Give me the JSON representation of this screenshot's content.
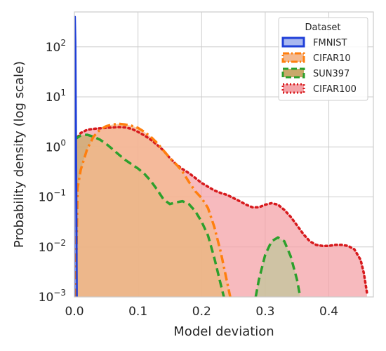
{
  "chart_data": {
    "type": "area",
    "xlabel": "Model deviation",
    "ylabel": "Probability density (log scale)",
    "xlim": [
      0.0,
      0.47
    ],
    "ylim": [
      0.001,
      500
    ],
    "yscale": "log",
    "grid": true,
    "x_ticks": [
      0.0,
      0.1,
      0.2,
      0.3,
      0.4
    ],
    "x_tick_labels": [
      "0.0",
      "0.1",
      "0.2",
      "0.3",
      "0.4"
    ],
    "y_ticks": [
      0.001,
      0.01,
      0.1,
      1,
      10,
      100
    ],
    "y_tick_labels": [
      {
        "base": "10",
        "exp": "−3"
      },
      {
        "base": "10",
        "exp": "−2"
      },
      {
        "base": "10",
        "exp": "−1"
      },
      {
        "base": "10",
        "exp": "0"
      },
      {
        "base": "10",
        "exp": "1"
      },
      {
        "base": "10",
        "exp": "2"
      }
    ],
    "legend": {
      "title": "Dataset",
      "placement": "top-right"
    },
    "series": [
      {
        "name": "CIFAR100",
        "color": "#d7191c",
        "fill": "#f4a3a8",
        "dash": "dotted",
        "points": [
          [
            0.0,
            1.3
          ],
          [
            0.01,
            1.9
          ],
          [
            0.02,
            2.2
          ],
          [
            0.03,
            2.3
          ],
          [
            0.04,
            2.35
          ],
          [
            0.05,
            2.4
          ],
          [
            0.06,
            2.45
          ],
          [
            0.07,
            2.5
          ],
          [
            0.08,
            2.45
          ],
          [
            0.09,
            2.3
          ],
          [
            0.1,
            2.0
          ],
          [
            0.11,
            1.7
          ],
          [
            0.12,
            1.4
          ],
          [
            0.13,
            1.1
          ],
          [
            0.14,
            0.85
          ],
          [
            0.15,
            0.6
          ],
          [
            0.16,
            0.45
          ],
          [
            0.17,
            0.36
          ],
          [
            0.18,
            0.3
          ],
          [
            0.19,
            0.24
          ],
          [
            0.2,
            0.19
          ],
          [
            0.21,
            0.16
          ],
          [
            0.22,
            0.135
          ],
          [
            0.23,
            0.12
          ],
          [
            0.24,
            0.11
          ],
          [
            0.25,
            0.095
          ],
          [
            0.26,
            0.082
          ],
          [
            0.27,
            0.07
          ],
          [
            0.28,
            0.062
          ],
          [
            0.29,
            0.062
          ],
          [
            0.3,
            0.07
          ],
          [
            0.31,
            0.075
          ],
          [
            0.32,
            0.07
          ],
          [
            0.33,
            0.055
          ],
          [
            0.34,
            0.04
          ],
          [
            0.35,
            0.027
          ],
          [
            0.36,
            0.018
          ],
          [
            0.37,
            0.013
          ],
          [
            0.38,
            0.011
          ],
          [
            0.39,
            0.0105
          ],
          [
            0.4,
            0.0105
          ],
          [
            0.41,
            0.011
          ],
          [
            0.42,
            0.011
          ],
          [
            0.43,
            0.0105
          ],
          [
            0.44,
            0.009
          ],
          [
            0.45,
            0.0055
          ],
          [
            0.455,
            0.003
          ],
          [
            0.46,
            0.0012
          ]
        ]
      },
      {
        "name": "SUN397",
        "color": "#2ca02c",
        "fill": "#c9a96a",
        "dash": "dashed",
        "points": [
          [
            0.0,
            1.4
          ],
          [
            0.01,
            1.7
          ],
          [
            0.02,
            1.75
          ],
          [
            0.03,
            1.6
          ],
          [
            0.04,
            1.4
          ],
          [
            0.05,
            1.15
          ],
          [
            0.06,
            0.9
          ],
          [
            0.07,
            0.7
          ],
          [
            0.08,
            0.55
          ],
          [
            0.09,
            0.45
          ],
          [
            0.1,
            0.37
          ],
          [
            0.11,
            0.29
          ],
          [
            0.12,
            0.21
          ],
          [
            0.13,
            0.14
          ],
          [
            0.14,
            0.09
          ],
          [
            0.15,
            0.072
          ],
          [
            0.16,
            0.078
          ],
          [
            0.17,
            0.082
          ],
          [
            0.18,
            0.072
          ],
          [
            0.19,
            0.052
          ],
          [
            0.2,
            0.032
          ],
          [
            0.21,
            0.017
          ],
          [
            0.22,
            0.006
          ],
          [
            0.23,
            0.0018
          ],
          [
            0.235,
            0.001
          ]
        ]
      },
      {
        "name": "SUN397",
        "color": "#2ca02c",
        "fill": "#c2c69b",
        "dash": "dashed",
        "points": [
          [
            0.285,
            0.001
          ],
          [
            0.29,
            0.0022
          ],
          [
            0.3,
            0.007
          ],
          [
            0.31,
            0.013
          ],
          [
            0.32,
            0.0155
          ],
          [
            0.33,
            0.013
          ],
          [
            0.34,
            0.0065
          ],
          [
            0.35,
            0.0022
          ],
          [
            0.355,
            0.001
          ]
        ]
      },
      {
        "name": "CIFAR10",
        "color": "#ff7f0e",
        "fill": "#f4b98f",
        "dash": "dashdot",
        "points": [
          [
            0.002,
            0.001
          ],
          [
            0.005,
            0.15
          ],
          [
            0.01,
            0.35
          ],
          [
            0.02,
            0.9
          ],
          [
            0.03,
            1.6
          ],
          [
            0.04,
            2.2
          ],
          [
            0.05,
            2.6
          ],
          [
            0.06,
            2.8
          ],
          [
            0.07,
            2.9
          ],
          [
            0.08,
            2.8
          ],
          [
            0.09,
            2.65
          ],
          [
            0.1,
            2.4
          ],
          [
            0.11,
            2.0
          ],
          [
            0.12,
            1.6
          ],
          [
            0.13,
            1.2
          ],
          [
            0.14,
            0.85
          ],
          [
            0.15,
            0.6
          ],
          [
            0.16,
            0.45
          ],
          [
            0.17,
            0.32
          ],
          [
            0.18,
            0.2
          ],
          [
            0.19,
            0.13
          ],
          [
            0.2,
            0.095
          ],
          [
            0.21,
            0.06
          ],
          [
            0.22,
            0.025
          ],
          [
            0.23,
            0.008
          ],
          [
            0.24,
            0.002
          ],
          [
            0.245,
            0.001
          ]
        ]
      },
      {
        "name": "FMNIST",
        "color": "#1f3fd8",
        "fill": "#a9b8f0",
        "dash": "solid",
        "points": [
          [
            0.0,
            0.001
          ],
          [
            0.0005,
            50
          ],
          [
            0.001,
            400
          ],
          [
            0.0018,
            120
          ],
          [
            0.003,
            0.5
          ],
          [
            0.004,
            0.001
          ]
        ]
      }
    ]
  }
}
